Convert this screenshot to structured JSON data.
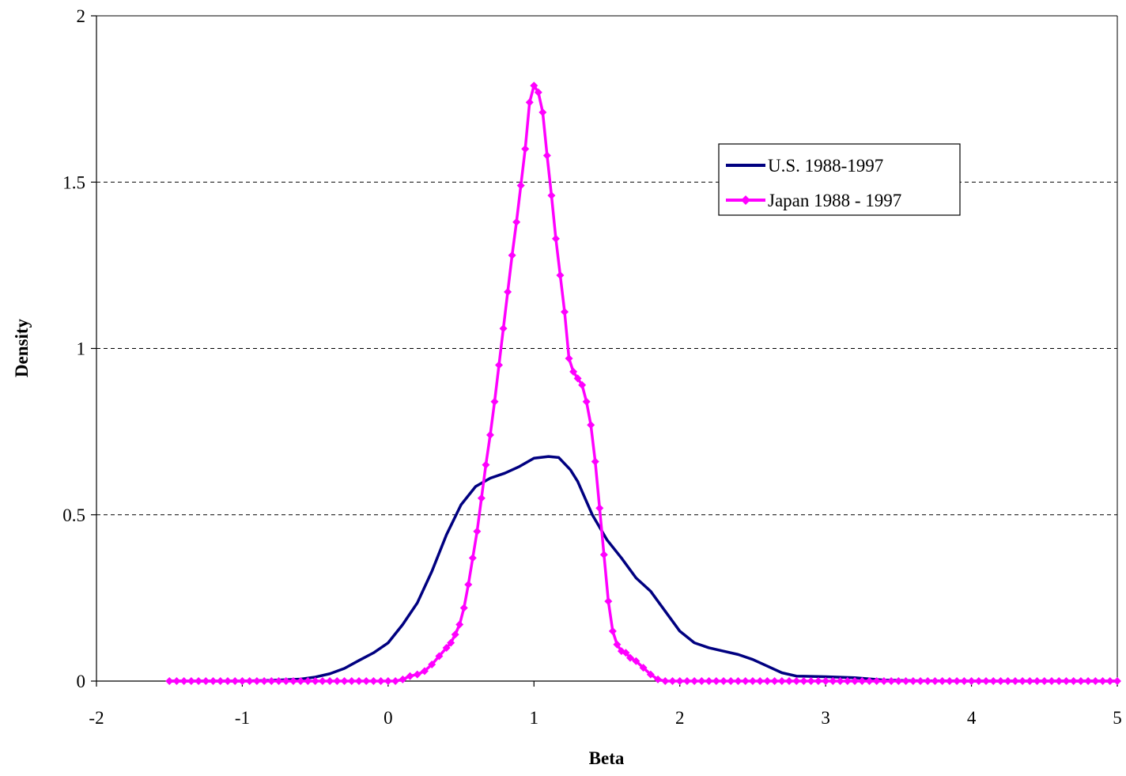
{
  "chart_data": {
    "type": "line",
    "xlabel": "Beta",
    "ylabel": "Density",
    "xlim": [
      -2,
      5
    ],
    "ylim": [
      0,
      2
    ],
    "x_ticks": [
      "-2",
      "-1",
      "0",
      "1",
      "2",
      "3",
      "4",
      "5"
    ],
    "y_ticks": [
      "0",
      "0.5",
      "1",
      "1.5",
      "2"
    ],
    "grid": "horizontal dashed",
    "legend_position": "right, upper-middle",
    "series": [
      {
        "name": "U.S. 1988-1997",
        "color": "#000080",
        "marker": "none",
        "points": [
          [
            -1.5,
            0
          ],
          [
            -1.0,
            0
          ],
          [
            -0.8,
            0.002
          ],
          [
            -0.6,
            0.006
          ],
          [
            -0.5,
            0.012
          ],
          [
            -0.4,
            0.022
          ],
          [
            -0.3,
            0.038
          ],
          [
            -0.2,
            0.062
          ],
          [
            -0.1,
            0.085
          ],
          [
            0.0,
            0.115
          ],
          [
            0.1,
            0.17
          ],
          [
            0.2,
            0.235
          ],
          [
            0.3,
            0.33
          ],
          [
            0.4,
            0.44
          ],
          [
            0.5,
            0.53
          ],
          [
            0.6,
            0.585
          ],
          [
            0.7,
            0.61
          ],
          [
            0.8,
            0.625
          ],
          [
            0.9,
            0.645
          ],
          [
            1.0,
            0.67
          ],
          [
            1.1,
            0.675
          ],
          [
            1.17,
            0.672
          ],
          [
            1.25,
            0.635
          ],
          [
            1.3,
            0.6
          ],
          [
            1.4,
            0.5
          ],
          [
            1.5,
            0.425
          ],
          [
            1.6,
            0.37
          ],
          [
            1.7,
            0.31
          ],
          [
            1.8,
            0.27
          ],
          [
            1.9,
            0.21
          ],
          [
            2.0,
            0.15
          ],
          [
            2.1,
            0.115
          ],
          [
            2.2,
            0.1
          ],
          [
            2.3,
            0.09
          ],
          [
            2.4,
            0.08
          ],
          [
            2.5,
            0.065
          ],
          [
            2.6,
            0.045
          ],
          [
            2.7,
            0.025
          ],
          [
            2.8,
            0.015
          ],
          [
            3.0,
            0.013
          ],
          [
            3.2,
            0.01
          ],
          [
            3.4,
            0.003
          ],
          [
            3.6,
            0.001
          ],
          [
            4.0,
            0
          ],
          [
            5.0,
            0
          ]
        ]
      },
      {
        "name": "Japan 1988 - 1997",
        "color": "#FF00FF",
        "marker": "diamond",
        "points": [
          [
            -1.5,
            0
          ],
          [
            -1.45,
            0
          ],
          [
            -1.4,
            0
          ],
          [
            -1.35,
            0
          ],
          [
            -1.3,
            0
          ],
          [
            -1.25,
            0
          ],
          [
            -1.2,
            0
          ],
          [
            -1.15,
            0
          ],
          [
            -1.1,
            0
          ],
          [
            -1.05,
            0
          ],
          [
            -1.0,
            0
          ],
          [
            -0.95,
            0
          ],
          [
            -0.9,
            0
          ],
          [
            -0.85,
            0
          ],
          [
            -0.8,
            0
          ],
          [
            -0.75,
            0
          ],
          [
            -0.7,
            0
          ],
          [
            -0.65,
            0
          ],
          [
            -0.6,
            0
          ],
          [
            -0.55,
            0
          ],
          [
            -0.5,
            0
          ],
          [
            -0.45,
            0
          ],
          [
            -0.4,
            0
          ],
          [
            -0.35,
            0
          ],
          [
            -0.3,
            0
          ],
          [
            -0.25,
            0
          ],
          [
            -0.2,
            0
          ],
          [
            -0.15,
            0
          ],
          [
            -0.1,
            0
          ],
          [
            -0.05,
            0
          ],
          [
            0.0,
            0
          ],
          [
            0.05,
            0
          ],
          [
            0.1,
            0.005
          ],
          [
            0.15,
            0.015
          ],
          [
            0.2,
            0.02
          ],
          [
            0.25,
            0.03
          ],
          [
            0.3,
            0.05
          ],
          [
            0.35,
            0.075
          ],
          [
            0.4,
            0.1
          ],
          [
            0.43,
            0.115
          ],
          [
            0.46,
            0.14
          ],
          [
            0.49,
            0.17
          ],
          [
            0.52,
            0.22
          ],
          [
            0.55,
            0.29
          ],
          [
            0.58,
            0.37
          ],
          [
            0.61,
            0.45
          ],
          [
            0.64,
            0.55
          ],
          [
            0.67,
            0.65
          ],
          [
            0.7,
            0.74
          ],
          [
            0.73,
            0.84
          ],
          [
            0.76,
            0.95
          ],
          [
            0.79,
            1.06
          ],
          [
            0.82,
            1.17
          ],
          [
            0.85,
            1.28
          ],
          [
            0.88,
            1.38
          ],
          [
            0.91,
            1.49
          ],
          [
            0.94,
            1.6
          ],
          [
            0.97,
            1.74
          ],
          [
            1.0,
            1.79
          ],
          [
            1.03,
            1.77
          ],
          [
            1.06,
            1.71
          ],
          [
            1.09,
            1.58
          ],
          [
            1.12,
            1.46
          ],
          [
            1.15,
            1.33
          ],
          [
            1.18,
            1.22
          ],
          [
            1.21,
            1.11
          ],
          [
            1.24,
            0.97
          ],
          [
            1.27,
            0.93
          ],
          [
            1.3,
            0.91
          ],
          [
            1.33,
            0.89
          ],
          [
            1.36,
            0.84
          ],
          [
            1.39,
            0.77
          ],
          [
            1.42,
            0.66
          ],
          [
            1.45,
            0.52
          ],
          [
            1.48,
            0.38
          ],
          [
            1.51,
            0.24
          ],
          [
            1.54,
            0.15
          ],
          [
            1.57,
            0.11
          ],
          [
            1.6,
            0.09
          ],
          [
            1.63,
            0.085
          ],
          [
            1.66,
            0.07
          ],
          [
            1.7,
            0.06
          ],
          [
            1.75,
            0.04
          ],
          [
            1.8,
            0.02
          ],
          [
            1.85,
            0.005
          ],
          [
            1.9,
            0
          ],
          [
            1.95,
            0
          ],
          [
            2.0,
            0
          ],
          [
            2.05,
            0
          ],
          [
            2.1,
            0
          ],
          [
            2.15,
            0
          ],
          [
            2.2,
            0
          ],
          [
            2.25,
            0
          ],
          [
            2.3,
            0
          ],
          [
            2.35,
            0
          ],
          [
            2.4,
            0
          ],
          [
            2.45,
            0
          ],
          [
            2.5,
            0
          ],
          [
            2.55,
            0
          ],
          [
            2.6,
            0
          ],
          [
            2.65,
            0
          ],
          [
            2.7,
            0
          ],
          [
            2.75,
            0
          ],
          [
            2.8,
            0
          ],
          [
            2.85,
            0
          ],
          [
            2.9,
            0
          ],
          [
            2.95,
            0
          ],
          [
            3.0,
            0
          ],
          [
            3.05,
            0
          ],
          [
            3.1,
            0
          ],
          [
            3.15,
            0
          ],
          [
            3.2,
            0
          ],
          [
            3.25,
            0
          ],
          [
            3.3,
            0
          ],
          [
            3.35,
            0
          ],
          [
            3.4,
            0
          ],
          [
            3.45,
            0
          ],
          [
            3.5,
            0
          ],
          [
            3.55,
            0
          ],
          [
            3.6,
            0
          ],
          [
            3.65,
            0
          ],
          [
            3.7,
            0
          ],
          [
            3.75,
            0
          ],
          [
            3.8,
            0
          ],
          [
            3.85,
            0
          ],
          [
            3.9,
            0
          ],
          [
            3.95,
            0
          ],
          [
            4.0,
            0
          ],
          [
            4.05,
            0
          ],
          [
            4.1,
            0
          ],
          [
            4.15,
            0
          ],
          [
            4.2,
            0
          ],
          [
            4.25,
            0
          ],
          [
            4.3,
            0
          ],
          [
            4.35,
            0
          ],
          [
            4.4,
            0
          ],
          [
            4.45,
            0
          ],
          [
            4.5,
            0
          ],
          [
            4.55,
            0
          ],
          [
            4.6,
            0
          ],
          [
            4.65,
            0
          ],
          [
            4.7,
            0
          ],
          [
            4.75,
            0
          ],
          [
            4.8,
            0
          ],
          [
            4.85,
            0
          ],
          [
            4.9,
            0
          ],
          [
            4.95,
            0
          ],
          [
            5.0,
            0
          ]
        ]
      }
    ]
  }
}
